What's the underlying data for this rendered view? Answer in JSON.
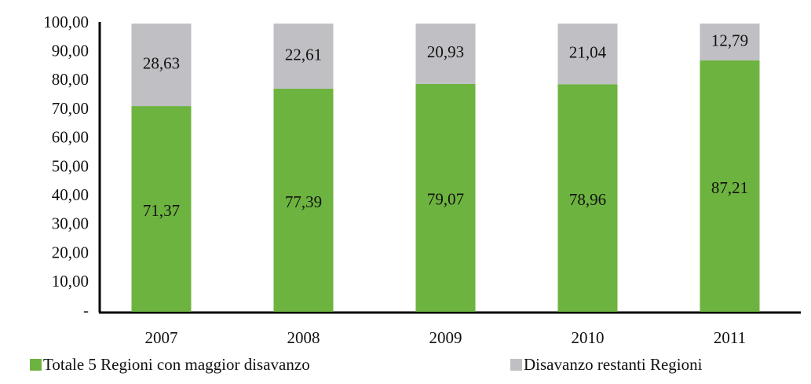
{
  "chart_data": {
    "type": "stacked_bar",
    "categories": [
      "2007",
      "2008",
      "2009",
      "2010",
      "2011"
    ],
    "series": [
      {
        "name": "Totale 5 Regioni con maggior disavanzo",
        "color": "#6db33f",
        "values": [
          71.37,
          77.39,
          79.07,
          78.96,
          87.21
        ],
        "value_labels": [
          "71,37",
          "77,39",
          "79,07",
          "78,96",
          "87,21"
        ]
      },
      {
        "name": "Disavanzo restanti Regioni",
        "color": "#bfbfc4",
        "values": [
          28.63,
          22.61,
          20.93,
          21.04,
          12.79
        ],
        "value_labels": [
          "28,63",
          "22,61",
          "20,93",
          "21,04",
          "12,79"
        ]
      }
    ],
    "ylim": [
      0,
      100
    ],
    "yticks": [
      {
        "value": 0,
        "label": "-"
      },
      {
        "value": 10,
        "label": "10,00"
      },
      {
        "value": 20,
        "label": "20,00"
      },
      {
        "value": 30,
        "label": "30,00"
      },
      {
        "value": 40,
        "label": "40,00"
      },
      {
        "value": 50,
        "label": "50,00"
      },
      {
        "value": 60,
        "label": "60,00"
      },
      {
        "value": 70,
        "label": "70,00"
      },
      {
        "value": 80,
        "label": "80,00"
      },
      {
        "value": 90,
        "label": "90,00"
      },
      {
        "value": 100,
        "label": "100,00"
      }
    ],
    "grid": false,
    "legend": "bottom"
  }
}
